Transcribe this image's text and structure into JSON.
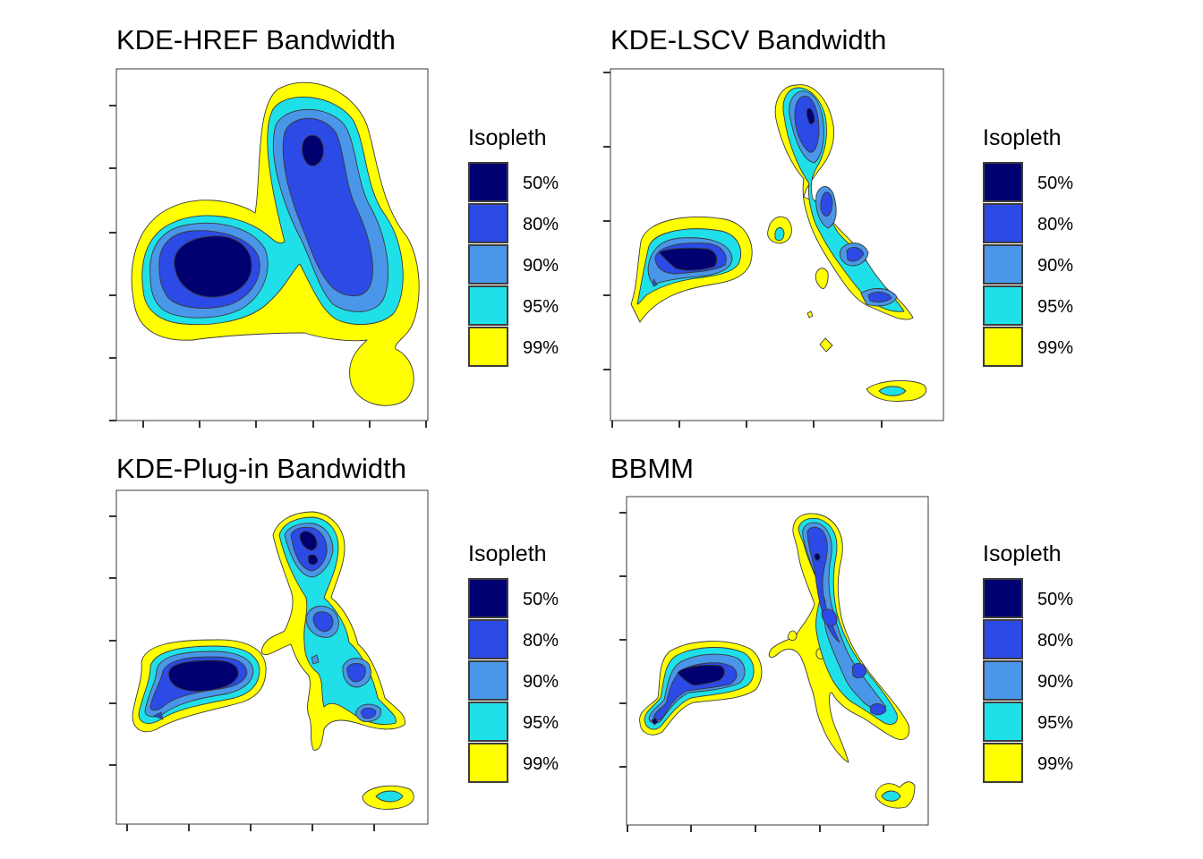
{
  "chart_data": [
    {
      "type": "contour",
      "title": "KDE-HREF Bandwidth",
      "legend": {
        "title": "Isopleth",
        "placement": "right",
        "levels": [
          "50%",
          "80%",
          "90%",
          "95%",
          "99%"
        ]
      },
      "x_ticks": 6,
      "y_ticks": 6,
      "tick_labels_shown": false,
      "grid": false
    },
    {
      "type": "contour",
      "title": "KDE-LSCV Bandwidth",
      "legend": {
        "title": "Isopleth",
        "placement": "right",
        "levels": [
          "50%",
          "80%",
          "90%",
          "95%",
          "99%"
        ]
      },
      "x_ticks": 5,
      "y_ticks": 5,
      "tick_labels_shown": false,
      "grid": false
    },
    {
      "type": "contour",
      "title": "KDE-Plug-in Bandwidth",
      "legend": {
        "title": "Isopleth",
        "placement": "right",
        "levels": [
          "50%",
          "80%",
          "90%",
          "95%",
          "99%"
        ]
      },
      "x_ticks": 5,
      "y_ticks": 5,
      "tick_labels_shown": false,
      "grid": false
    },
    {
      "type": "contour",
      "title": "BBMM",
      "legend": {
        "title": "Isopleth",
        "placement": "right",
        "levels": [
          "50%",
          "80%",
          "90%",
          "95%",
          "99%"
        ]
      },
      "x_ticks": 5,
      "y_ticks": 5,
      "tick_labels_shown": false,
      "grid": false
    }
  ],
  "colors": {
    "50%": "#000070",
    "80%": "#2b4ae6",
    "90%": "#4a96e8",
    "95%": "#1fe0e8",
    "99%": "#ffff00"
  }
}
